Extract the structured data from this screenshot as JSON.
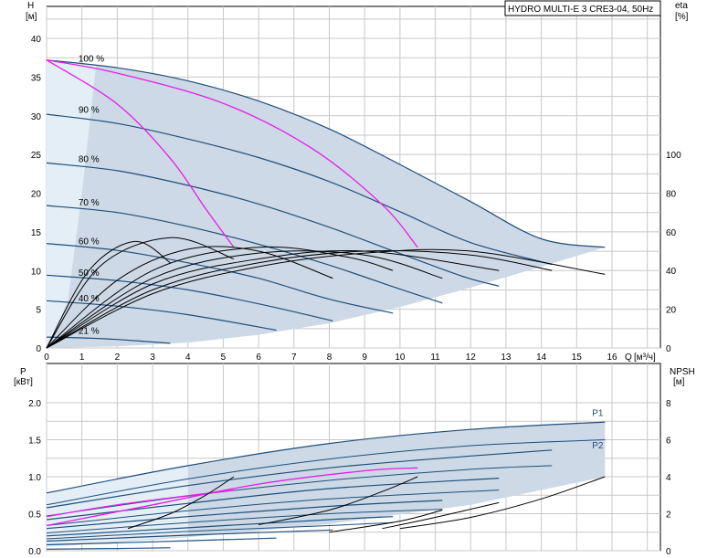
{
  "chart_data": [
    {
      "type": "line",
      "title": "HYDRO MULTI-E 3 CRE3-04, 50Hz",
      "x_unit": "Q [м³/ч]",
      "x_label": "Q",
      "x_unit_text": "[м³/ч]",
      "y_label": "H",
      "y_unit": "[м]",
      "y2_label": "eta",
      "y2_unit": "[%]",
      "xlim": [
        0,
        17
      ],
      "ylim": [
        0,
        45
      ],
      "y2lim": [
        0,
        100
      ],
      "x_ticks": [
        "0",
        "1",
        "2",
        "3",
        "4",
        "5",
        "6",
        "7",
        "8",
        "9",
        "10",
        "11",
        "12",
        "13",
        "14",
        "15",
        "16"
      ],
      "y_ticks": [
        "0",
        "5",
        "10",
        "15",
        "20",
        "25",
        "30",
        "35",
        "40"
      ],
      "y2_ticks": [
        "0",
        "20",
        "40",
        "60",
        "80",
        "100"
      ],
      "grid": true,
      "speed_labels": [
        {
          "label": "100 %",
          "x": 0.9,
          "y": 37.0
        },
        {
          "label": "90 %",
          "x": 0.9,
          "y": 30.4
        },
        {
          "label": "80 %",
          "x": 0.9,
          "y": 24.0
        },
        {
          "label": "70 %",
          "x": 0.9,
          "y": 18.4
        },
        {
          "label": "60 %",
          "x": 0.9,
          "y": 13.4
        },
        {
          "label": "50 %",
          "x": 0.9,
          "y": 9.3
        },
        {
          "label": "40 %",
          "x": 0.9,
          "y": 6.0
        },
        {
          "label": "21 %",
          "x": 0.9,
          "y": 1.8
        }
      ],
      "head_curves": [
        {
          "speed": "100 %",
          "x": [
            0,
            2,
            4,
            6,
            8,
            10,
            12,
            14,
            15.8
          ],
          "y": [
            37.2,
            36.2,
            34.5,
            31.9,
            28.3,
            23.7,
            18.9,
            14.1,
            13.0
          ]
        },
        {
          "speed": "90 %",
          "x": [
            0,
            2,
            4,
            6,
            8,
            10,
            12,
            14.3
          ],
          "y": [
            30.2,
            29.0,
            27.0,
            24.6,
            21.5,
            17.6,
            13.6,
            10.8
          ]
        },
        {
          "speed": "80 %",
          "x": [
            0,
            2,
            4,
            6,
            8,
            10,
            11.8,
            12.8
          ],
          "y": [
            23.9,
            22.9,
            21.0,
            18.6,
            15.6,
            12.2,
            9.2,
            8.0
          ]
        },
        {
          "speed": "70 %",
          "x": [
            0,
            2,
            4,
            6,
            8,
            10,
            11.2
          ],
          "y": [
            18.4,
            17.5,
            15.7,
            13.4,
            10.7,
            7.6,
            5.8
          ]
        },
        {
          "speed": "60 %",
          "x": [
            0,
            2,
            4,
            6,
            8,
            9.8
          ],
          "y": [
            13.5,
            12.6,
            11.0,
            9.0,
            6.3,
            4.5
          ]
        },
        {
          "speed": "50 %",
          "x": [
            0,
            2,
            4,
            6,
            8.1
          ],
          "y": [
            9.4,
            8.7,
            7.5,
            5.7,
            3.5
          ]
        },
        {
          "speed": "40 %",
          "x": [
            0,
            2,
            4,
            6.5
          ],
          "y": [
            6.1,
            5.4,
            4.3,
            2.3
          ]
        },
        {
          "speed": "21 %",
          "x": [
            0,
            1,
            2,
            3.5
          ],
          "y": [
            1.4,
            1.3,
            1.1,
            0.6
          ]
        }
      ],
      "system_curves_magenta": [
        {
          "x": [
            0,
            2,
            3.5,
            4.5,
            5.3
          ],
          "y": [
            37.2,
            31.5,
            24.5,
            18.0,
            13.0
          ]
        },
        {
          "x": [
            0,
            2,
            5,
            7.5,
            9.5,
            10.5
          ],
          "y": [
            37.2,
            35.5,
            31.6,
            25.8,
            18.5,
            13.0
          ]
        }
      ],
      "efficiency_curves": [
        {
          "speed": "100 %",
          "x": [
            0,
            3,
            6,
            9,
            12,
            15.8
          ],
          "y": [
            0,
            28,
            42,
            49,
            50,
            38
          ]
        },
        {
          "speed": "90 %",
          "x": [
            0,
            3,
            6,
            9,
            12,
            14.3
          ],
          "y": [
            0,
            30,
            44,
            50,
            48,
            40
          ]
        },
        {
          "speed": "80 %",
          "x": [
            0,
            3,
            6,
            9,
            12.8
          ],
          "y": [
            0,
            33,
            46,
            50,
            40
          ]
        },
        {
          "speed": "70 %",
          "x": [
            0,
            3,
            6,
            9,
            11.2
          ],
          "y": [
            0,
            36,
            49,
            48,
            36
          ]
        },
        {
          "speed": "60 %",
          "x": [
            0,
            3,
            6,
            8.5,
            9.8
          ],
          "y": [
            0,
            40,
            52,
            47,
            40
          ]
        },
        {
          "speed": "50 %",
          "x": [
            0,
            2,
            4,
            6,
            8.1
          ],
          "y": [
            0,
            35,
            51,
            50,
            36
          ]
        },
        {
          "speed": "40 %",
          "x": [
            0,
            1.5,
            3.5,
            5.3
          ],
          "y": [
            0,
            42,
            57,
            46
          ]
        },
        {
          "speed": "30 %",
          "x": [
            0,
            1.2,
            2.5,
            3.5
          ],
          "y": [
            0,
            40,
            55,
            44
          ]
        }
      ]
    },
    {
      "type": "line",
      "y_label": "P",
      "y_unit": "[кВт]",
      "y2_label": "NPSH",
      "y2_unit": "[м]",
      "xlim": [
        0,
        17
      ],
      "ylim": [
        0,
        2.2
      ],
      "y2lim": [
        0,
        8.8
      ],
      "y_ticks": [
        "0.0",
        "0.5",
        "1.0",
        "1.5",
        "2.0"
      ],
      "y2_ticks": [
        "0",
        "2",
        "4",
        "6",
        "8"
      ],
      "grid": true,
      "series_labels": [
        {
          "label": "P1",
          "x": 15.8,
          "y": 1.82
        },
        {
          "label": "P2",
          "x": 15.8,
          "y": 1.38
        }
      ],
      "p1_curves": [
        {
          "x": [
            0,
            4,
            8,
            12,
            15.8
          ],
          "y": [
            0.78,
            1.15,
            1.45,
            1.64,
            1.74
          ]
        },
        {
          "x": [
            0,
            4,
            8,
            12,
            14.3
          ],
          "y": [
            0.58,
            0.88,
            1.12,
            1.28,
            1.36
          ]
        },
        {
          "x": [
            0,
            4,
            8,
            12.8
          ],
          "y": [
            0.42,
            0.64,
            0.84,
            0.98
          ]
        },
        {
          "x": [
            0,
            4,
            8,
            11.2
          ],
          "y": [
            0.3,
            0.46,
            0.6,
            0.68
          ]
        },
        {
          "x": [
            0,
            4,
            8,
            9.8
          ],
          "y": [
            0.2,
            0.31,
            0.42,
            0.46
          ]
        },
        {
          "x": [
            0,
            4,
            8.1
          ],
          "y": [
            0.13,
            0.21,
            0.28
          ]
        },
        {
          "x": [
            0,
            3,
            6.5
          ],
          "y": [
            0.08,
            0.12,
            0.17
          ]
        },
        {
          "x": [
            0,
            2,
            3.5
          ],
          "y": [
            0.02,
            0.03,
            0.04
          ]
        }
      ],
      "p2_curves": [
        {
          "x": [
            0,
            4,
            8,
            12,
            15.8
          ],
          "y": [
            0.62,
            0.97,
            1.24,
            1.42,
            1.5
          ]
        },
        {
          "x": [
            0,
            4,
            8,
            12,
            14.3
          ],
          "y": [
            0.47,
            0.74,
            0.95,
            1.1,
            1.15
          ]
        },
        {
          "x": [
            0,
            4,
            8,
            12.8
          ],
          "y": [
            0.34,
            0.54,
            0.7,
            0.82
          ]
        },
        {
          "x": [
            0,
            4,
            8,
            11.2
          ],
          "y": [
            0.24,
            0.38,
            0.5,
            0.56
          ]
        },
        {
          "x": [
            0,
            4,
            8,
            9.8
          ],
          "y": [
            0.16,
            0.26,
            0.34,
            0.38
          ]
        }
      ],
      "magenta_power": [
        {
          "x": [
            0,
            2,
            5.3
          ],
          "y": [
            0.46,
            0.62,
            0.82
          ]
        },
        {
          "x": [
            0,
            3,
            6,
            9,
            10.5
          ],
          "y": [
            0.34,
            0.62,
            0.9,
            1.08,
            1.12
          ]
        }
      ],
      "npsh_curves": [
        {
          "x": [
            2.3,
            3.5,
            4.5,
            5.3
          ],
          "y": [
            0.3,
            0.5,
            0.75,
            1.0
          ]
        },
        {
          "x": [
            6,
            8,
            9.5,
            10.5
          ],
          "y": [
            0.35,
            0.55,
            0.8,
            1.0
          ]
        },
        {
          "x": [
            10,
            12,
            14,
            15.8
          ],
          "y": [
            0.3,
            0.45,
            0.7,
            1.0
          ]
        },
        {
          "x": [
            9.5,
            11,
            12.8
          ],
          "y": [
            0.3,
            0.45,
            0.65
          ]
        },
        {
          "x": [
            8,
            10,
            11.2
          ],
          "y": [
            0.25,
            0.4,
            0.55
          ]
        }
      ]
    }
  ],
  "colors": {
    "grid": "#c8c8c8",
    "envelope": "#cdd9e6",
    "envelope_light": "#e4eef7",
    "head": "#1f4f7a",
    "system": "#e61ee6",
    "efficiency": "#000000",
    "frame": "#000000"
  }
}
